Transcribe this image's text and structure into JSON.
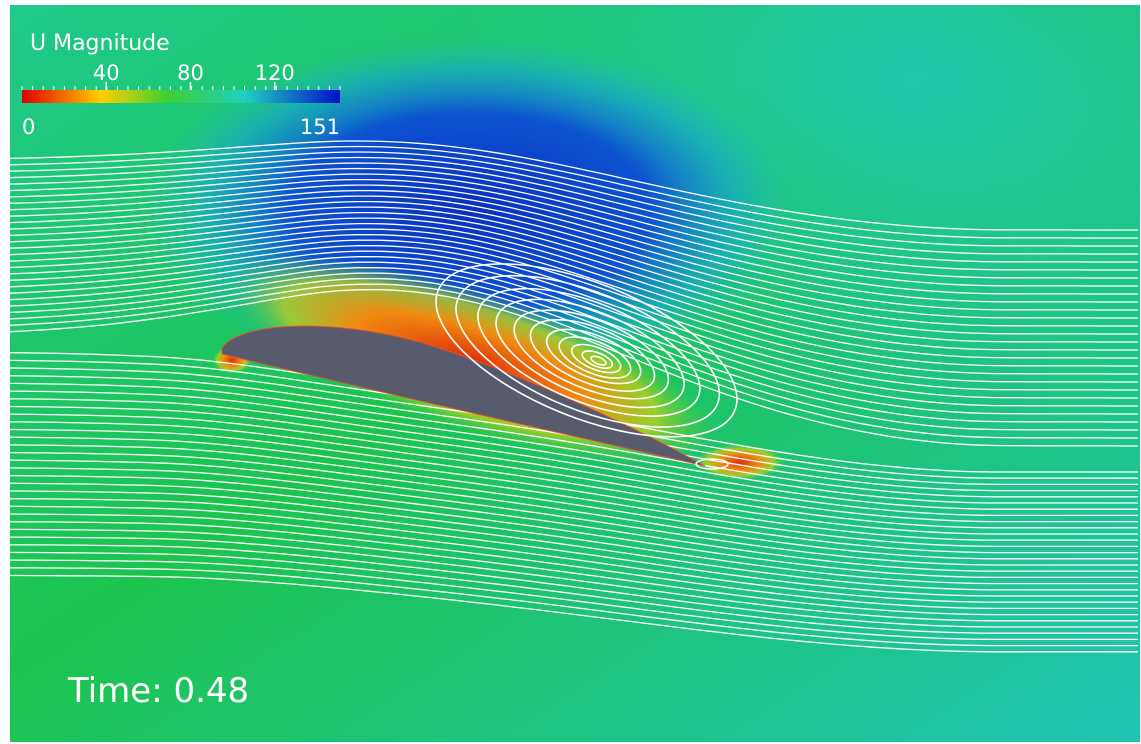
{
  "legend": {
    "title": "U Magnitude",
    "range": [
      0,
      151
    ],
    "ticks": [
      40,
      80,
      120
    ]
  },
  "annotation": "Time: 0.48"
}
